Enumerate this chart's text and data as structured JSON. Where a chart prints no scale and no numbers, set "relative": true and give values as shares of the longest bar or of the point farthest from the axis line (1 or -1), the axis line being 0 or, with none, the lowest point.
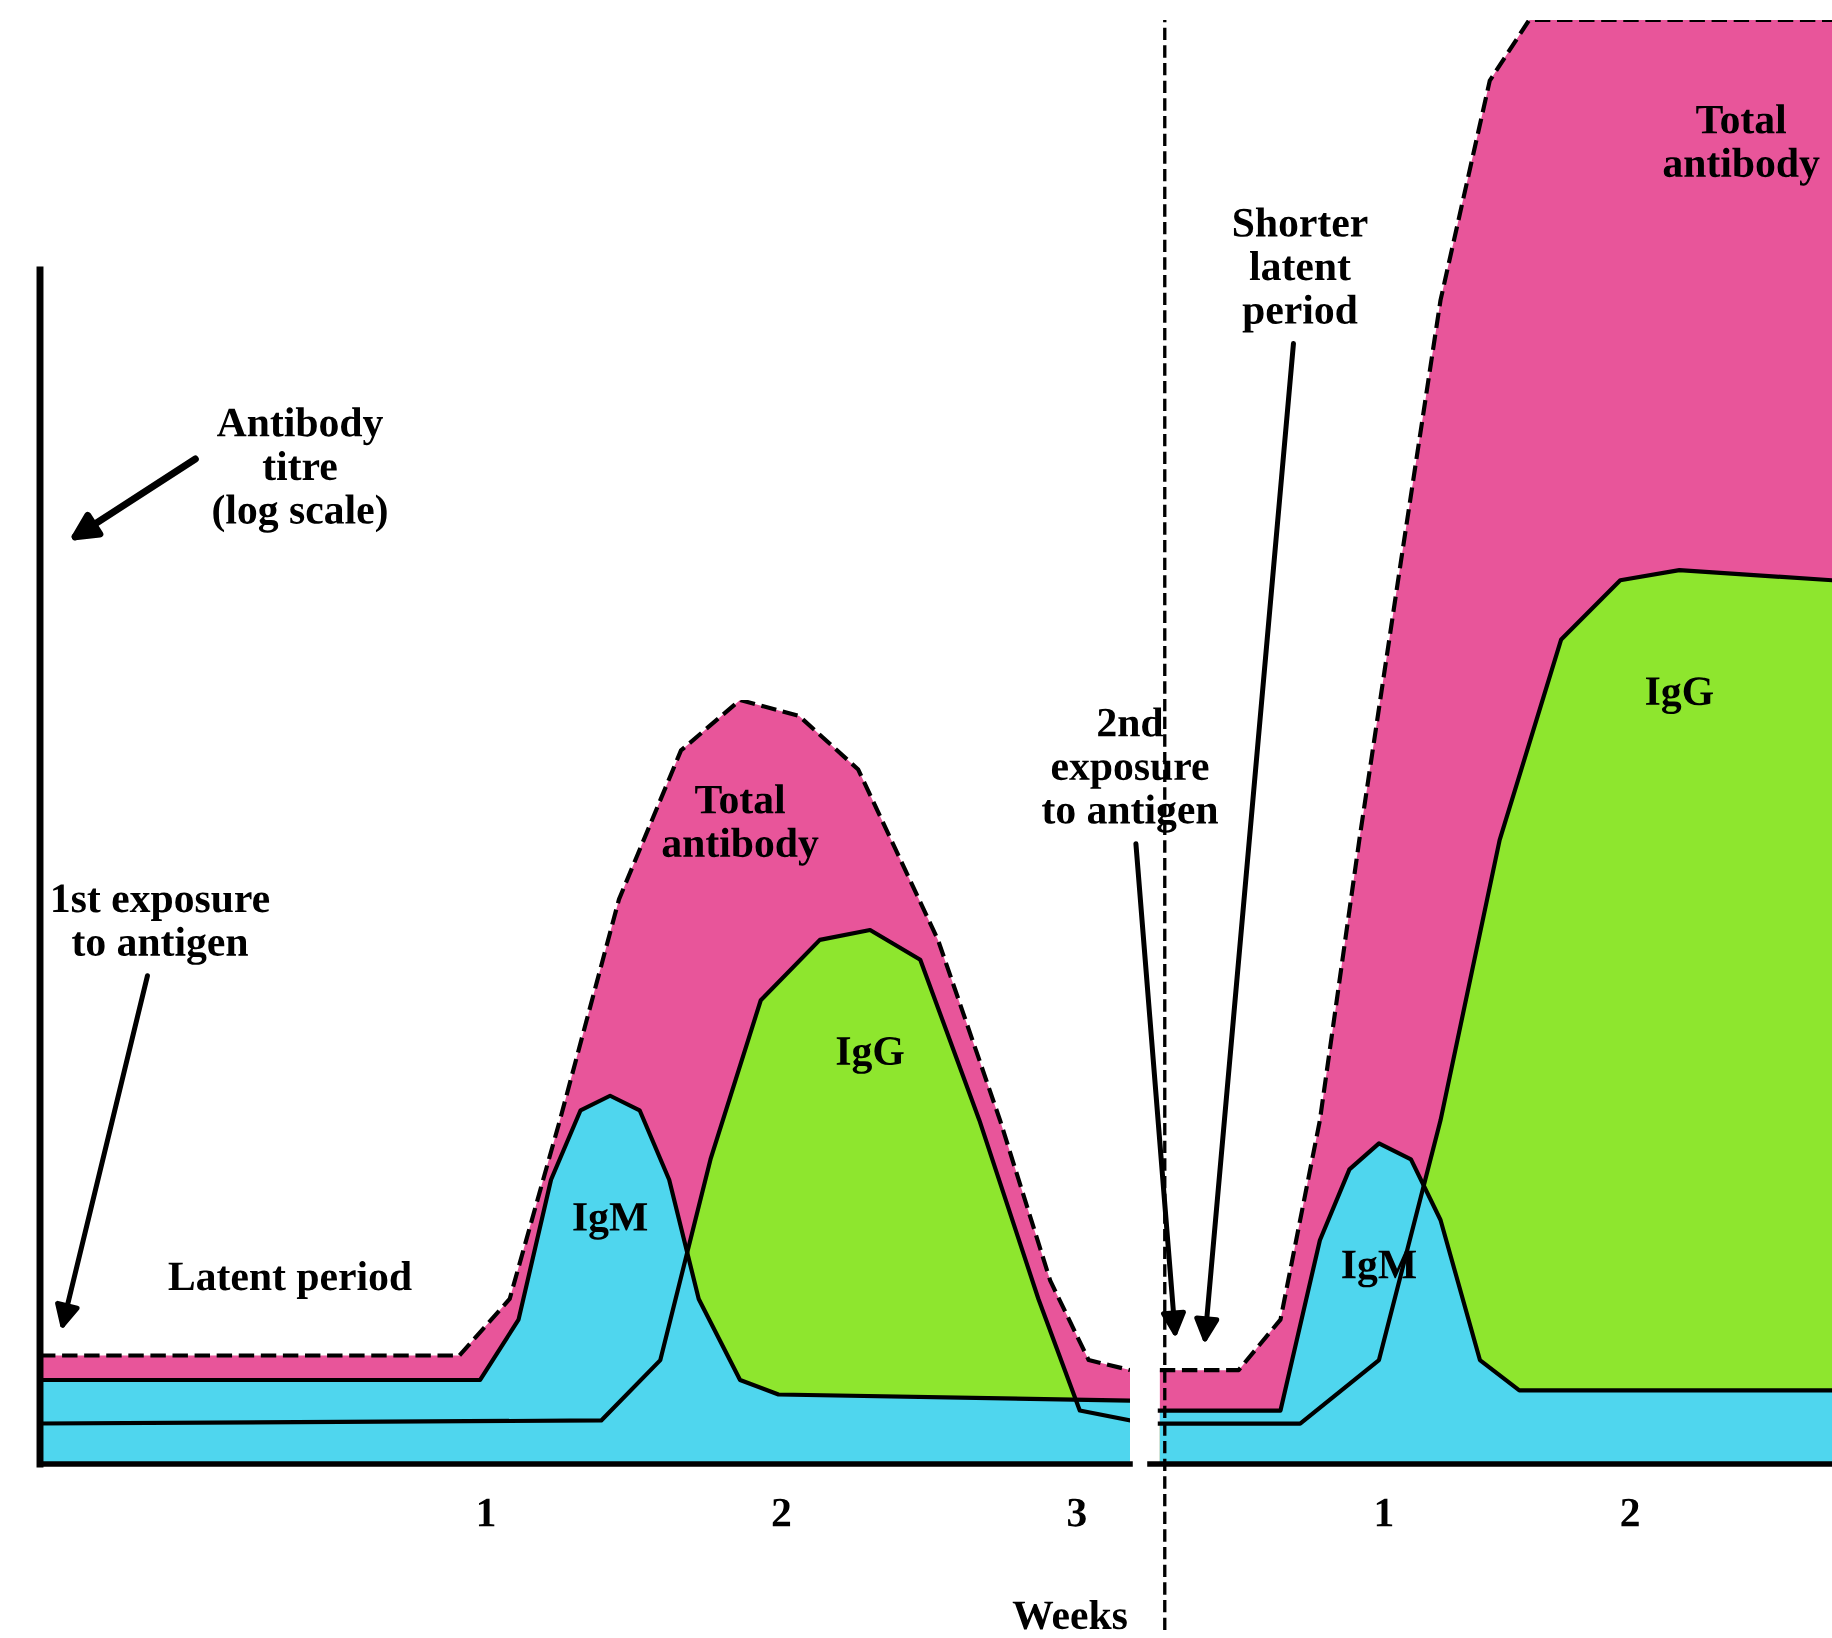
{
  "chart_data": [
    {
      "type": "area",
      "relative": true,
      "xlabel": "Weeks",
      "ylabel": "Antibody\ntitre\n(log scale)",
      "xlim": [
        -0.51,
        3.18
      ],
      "xticks": [
        1,
        2,
        3
      ],
      "series": [
        {
          "name": "Total\nantibody",
          "color": "#e8559a",
          "line_style": "dashed",
          "x": [
            -0.51,
            0.91,
            1.08,
            1.25,
            1.45,
            1.66,
            1.86,
            2.06,
            2.26,
            2.53,
            2.74,
            2.91,
            3.04,
            3.18
          ],
          "values": [
            0.142,
            0.142,
            0.216,
            0.45,
            0.739,
            0.934,
            1.0,
            0.979,
            0.909,
            0.686,
            0.45,
            0.24,
            0.136,
            0.123
          ]
        },
        {
          "name": "IgG",
          "color": "#8ee62e",
          "line_style": "solid",
          "x": [
            -0.51,
            1.39,
            1.59,
            1.76,
            1.93,
            2.13,
            2.3,
            2.47,
            2.67,
            2.87,
            3.01,
            3.18
          ],
          "values": [
            0.053,
            0.057,
            0.136,
            0.399,
            0.607,
            0.686,
            0.699,
            0.66,
            0.45,
            0.216,
            0.07,
            0.057
          ]
        },
        {
          "name": "IgM",
          "color": "#4fd6ee",
          "line_style": "solid",
          "x": [
            -0.51,
            0.98,
            1.11,
            1.22,
            1.32,
            1.42,
            1.52,
            1.62,
            1.72,
            1.86,
            1.99,
            3.18
          ],
          "values": [
            0.11,
            0.11,
            0.189,
            0.372,
            0.463,
            0.482,
            0.463,
            0.372,
            0.216,
            0.11,
            0.091,
            0.083
          ]
        }
      ],
      "annotations": [
        "Latent period",
        "1st exposure\nto antigen"
      ]
    },
    {
      "type": "area",
      "relative": true,
      "xlim": [
        0.05,
        2.82
      ],
      "xticks": [
        1,
        2
      ],
      "series": [
        {
          "name": "Total\nantibody",
          "color": "#e8559a",
          "line_style": "dashed",
          "x": [
            0.09,
            0.41,
            0.58,
            0.74,
            0.9,
            1.07,
            1.23,
            1.43,
            1.59,
            2.82
          ],
          "values": [
            0.065,
            0.065,
            0.1,
            0.238,
            0.432,
            0.626,
            0.806,
            0.958,
            1.0,
            1.0
          ]
        },
        {
          "name": "IgG",
          "color": "#8ee62e",
          "line_style": "solid",
          "x": [
            0.09,
            0.66,
            0.98,
            1.23,
            1.47,
            1.72,
            1.96,
            2.2,
            2.82
          ],
          "values": [
            0.028,
            0.028,
            0.072,
            0.238,
            0.432,
            0.571,
            0.612,
            0.619,
            0.612
          ]
        },
        {
          "name": "IgM",
          "color": "#4fd6ee",
          "line_style": "solid",
          "x": [
            0.09,
            0.58,
            0.74,
            0.86,
            0.98,
            1.11,
            1.23,
            1.39,
            1.55,
            2.82
          ],
          "values": [
            0.037,
            0.037,
            0.155,
            0.204,
            0.222,
            0.211,
            0.169,
            0.072,
            0.051,
            0.051
          ]
        }
      ],
      "ref_lines": [
        {
          "axis": "x",
          "value": 0.11,
          "color": "#000000",
          "line_style": "dashed"
        }
      ],
      "annotations": [
        "2nd\nexposure\nto antigen",
        "Shorter\nlatent\nperiod"
      ]
    }
  ]
}
